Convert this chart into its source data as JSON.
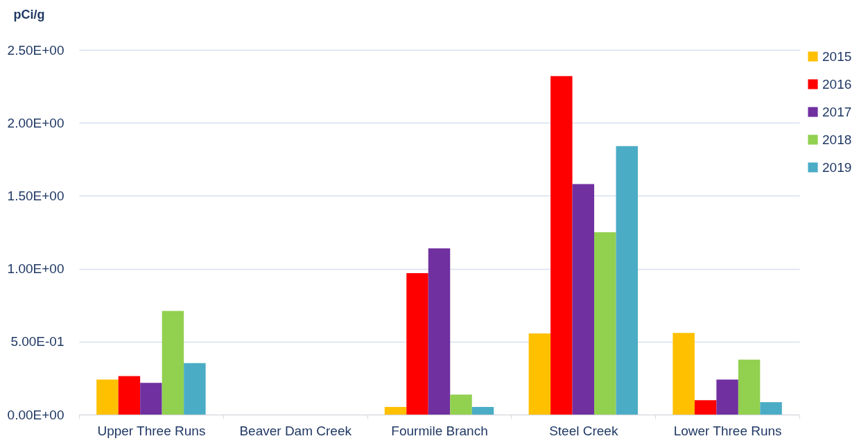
{
  "chart_data": {
    "type": "bar",
    "ylabel": "pCi/g",
    "categories": [
      "Upper Three Runs",
      "Beaver Dam Creek",
      "Fourmile Branch",
      "Steel Creek",
      "Lower Three Runs"
    ],
    "series": [
      {
        "name": "2015",
        "color": "#ffc000",
        "values": [
          0.24,
          null,
          0.052,
          0.556,
          0.56
        ]
      },
      {
        "name": "2016",
        "color": "#ff0000",
        "values": [
          0.264,
          null,
          0.97,
          2.32,
          0.099
        ]
      },
      {
        "name": "2017",
        "color": "#7030a0",
        "values": [
          0.217,
          null,
          1.14,
          1.58,
          0.24
        ]
      },
      {
        "name": "2018",
        "color": "#92d050",
        "values": [
          0.711,
          null,
          0.137,
          1.25,
          0.377
        ]
      },
      {
        "name": "2019",
        "color": "#4bacc6",
        "values": [
          0.353,
          null,
          0.052,
          1.84,
          0.085
        ]
      }
    ],
    "ylim": [
      0,
      2.5
    ],
    "yticks": [
      {
        "value": 0,
        "label": "0.00E+00"
      },
      {
        "value": 0.5,
        "label": "5.00E-01"
      },
      {
        "value": 1,
        "label": "1.00E+00"
      },
      {
        "value": 1.5,
        "label": "1.50E+00"
      },
      {
        "value": 2,
        "label": "2.00E+00"
      },
      {
        "value": 2.5,
        "label": "2.50E+00"
      }
    ],
    "grid": "y",
    "legend": "top right"
  }
}
